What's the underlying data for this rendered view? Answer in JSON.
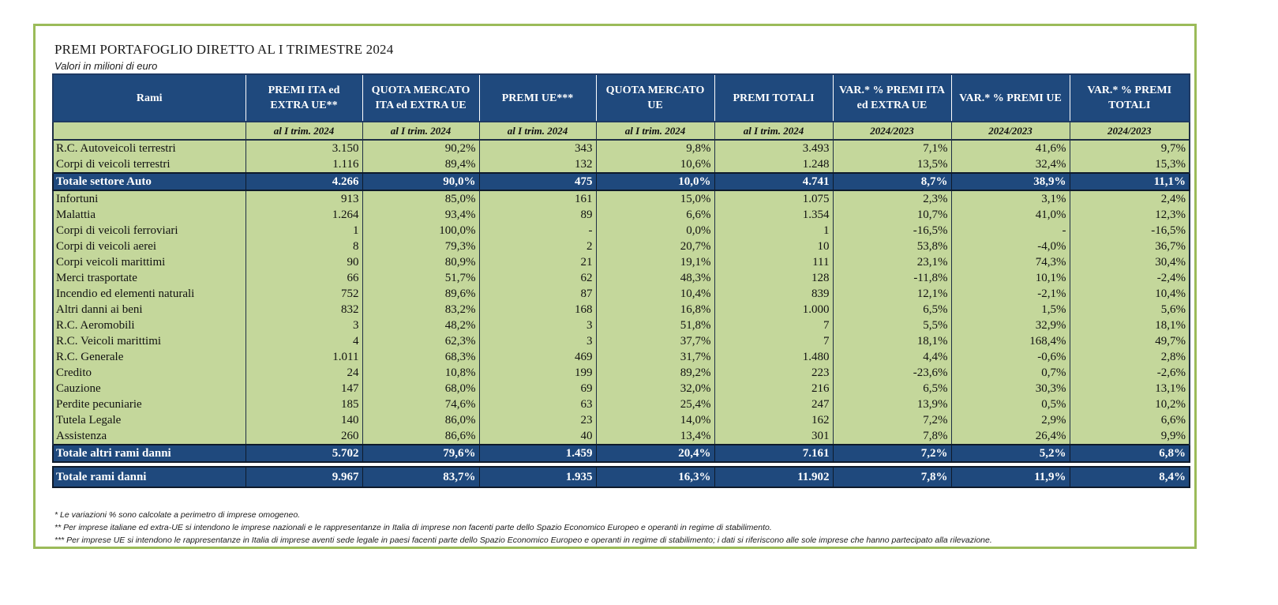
{
  "title": "PREMI PORTAFOGLIO DIRETTO AL I TRIMESTRE 2024",
  "subtitle": "Valori in milioni di euro",
  "columns": [
    "Rami",
    "PREMI ITA ed EXTRA UE**",
    "QUOTA MERCATO ITA ed EXTRA UE",
    "PREMI UE***",
    "QUOTA MERCATO UE",
    "PREMI TOTALI",
    "VAR.* % PREMI ITA ed EXTRA UE",
    "VAR.* % PREMI UE",
    "VAR.* % PREMI TOTALI"
  ],
  "subheaders": [
    "",
    "al I trim. 2024",
    "al I trim. 2024",
    "al I trim. 2024",
    "al I trim. 2024",
    "al I trim. 2024",
    "2024/2023",
    "2024/2023",
    "2024/2023"
  ],
  "auto_rows": [
    [
      "R.C. Autoveicoli terrestri",
      "3.150",
      "90,2%",
      "343",
      "9,8%",
      "3.493",
      "7,1%",
      "41,6%",
      "9,7%"
    ],
    [
      "Corpi di veicoli terrestri",
      "1.116",
      "89,4%",
      "132",
      "10,6%",
      "1.248",
      "13,5%",
      "32,4%",
      "15,3%"
    ]
  ],
  "total_auto": [
    "Totale settore Auto",
    "4.266",
    "90,0%",
    "475",
    "10,0%",
    "4.741",
    "8,7%",
    "38,9%",
    "11,1%"
  ],
  "other_rows": [
    [
      "Infortuni",
      "913",
      "85,0%",
      "161",
      "15,0%",
      "1.075",
      "2,3%",
      "3,1%",
      "2,4%"
    ],
    [
      "Malattia",
      "1.264",
      "93,4%",
      "89",
      "6,6%",
      "1.354",
      "10,7%",
      "41,0%",
      "12,3%"
    ],
    [
      "Corpi di veicoli ferroviari",
      "1",
      "100,0%",
      "-",
      "0,0%",
      "1",
      "-16,5%",
      "-",
      "-16,5%"
    ],
    [
      "Corpi di veicoli aerei",
      "8",
      "79,3%",
      "2",
      "20,7%",
      "10",
      "53,8%",
      "-4,0%",
      "36,7%"
    ],
    [
      "Corpi veicoli marittimi",
      "90",
      "80,9%",
      "21",
      "19,1%",
      "111",
      "23,1%",
      "74,3%",
      "30,4%"
    ],
    [
      "Merci trasportate",
      "66",
      "51,7%",
      "62",
      "48,3%",
      "128",
      "-11,8%",
      "10,1%",
      "-2,4%"
    ],
    [
      "Incendio ed elementi naturali",
      "752",
      "89,6%",
      "87",
      "10,4%",
      "839",
      "12,1%",
      "-2,1%",
      "10,4%"
    ],
    [
      "Altri danni ai beni",
      "832",
      "83,2%",
      "168",
      "16,8%",
      "1.000",
      "6,5%",
      "1,5%",
      "5,6%"
    ],
    [
      "R.C. Aeromobili",
      "3",
      "48,2%",
      "3",
      "51,8%",
      "7",
      "5,5%",
      "32,9%",
      "18,1%"
    ],
    [
      "R.C. Veicoli marittimi",
      "4",
      "62,3%",
      "3",
      "37,7%",
      "7",
      "18,1%",
      "168,4%",
      "49,7%"
    ],
    [
      "R.C. Generale",
      "1.011",
      "68,3%",
      "469",
      "31,7%",
      "1.480",
      "4,4%",
      "-0,6%",
      "2,8%"
    ],
    [
      "Credito",
      "24",
      "10,8%",
      "199",
      "89,2%",
      "223",
      "-23,6%",
      "0,7%",
      "-2,6%"
    ],
    [
      "Cauzione",
      "147",
      "68,0%",
      "69",
      "32,0%",
      "216",
      "6,5%",
      "30,3%",
      "13,1%"
    ],
    [
      "Perdite pecuniarie",
      "185",
      "74,6%",
      "63",
      "25,4%",
      "247",
      "13,9%",
      "0,5%",
      "10,2%"
    ],
    [
      "Tutela Legale",
      "140",
      "86,0%",
      "23",
      "14,0%",
      "162",
      "7,2%",
      "2,9%",
      "6,6%"
    ],
    [
      "Assistenza",
      "260",
      "86,6%",
      "40",
      "13,4%",
      "301",
      "7,8%",
      "26,4%",
      "9,9%"
    ]
  ],
  "total_other": [
    "Totale altri rami danni",
    "5.702",
    "79,6%",
    "1.459",
    "20,4%",
    "7.161",
    "7,2%",
    "5,2%",
    "6,8%"
  ],
  "total_all": [
    "Totale rami danni",
    "9.967",
    "83,7%",
    "1.935",
    "16,3%",
    "11.902",
    "7,8%",
    "11,9%",
    "8,4%"
  ],
  "notes": [
    "* Le variazioni % sono calcolate a perimetro di imprese omogeneo.",
    "** Per imprese italiane ed extra-UE si intendono le imprese nazionali e le rappresentanze in Italia di imprese non facenti parte dello Spazio Economico Europeo e operanti in regime di stabilimento.",
    "*** Per imprese UE si intendono le rappresentanze in Italia di imprese aventi sede legale in paesi facenti parte dello Spazio Economico Europeo e operanti in regime di stabilimento; i dati si riferiscono alle sole imprese che hanno partecipato alla rilevazione."
  ],
  "colors": {
    "header_bg": "#1f497d",
    "row_bg": "#c4d79b",
    "frame_border": "#9bbb59"
  }
}
